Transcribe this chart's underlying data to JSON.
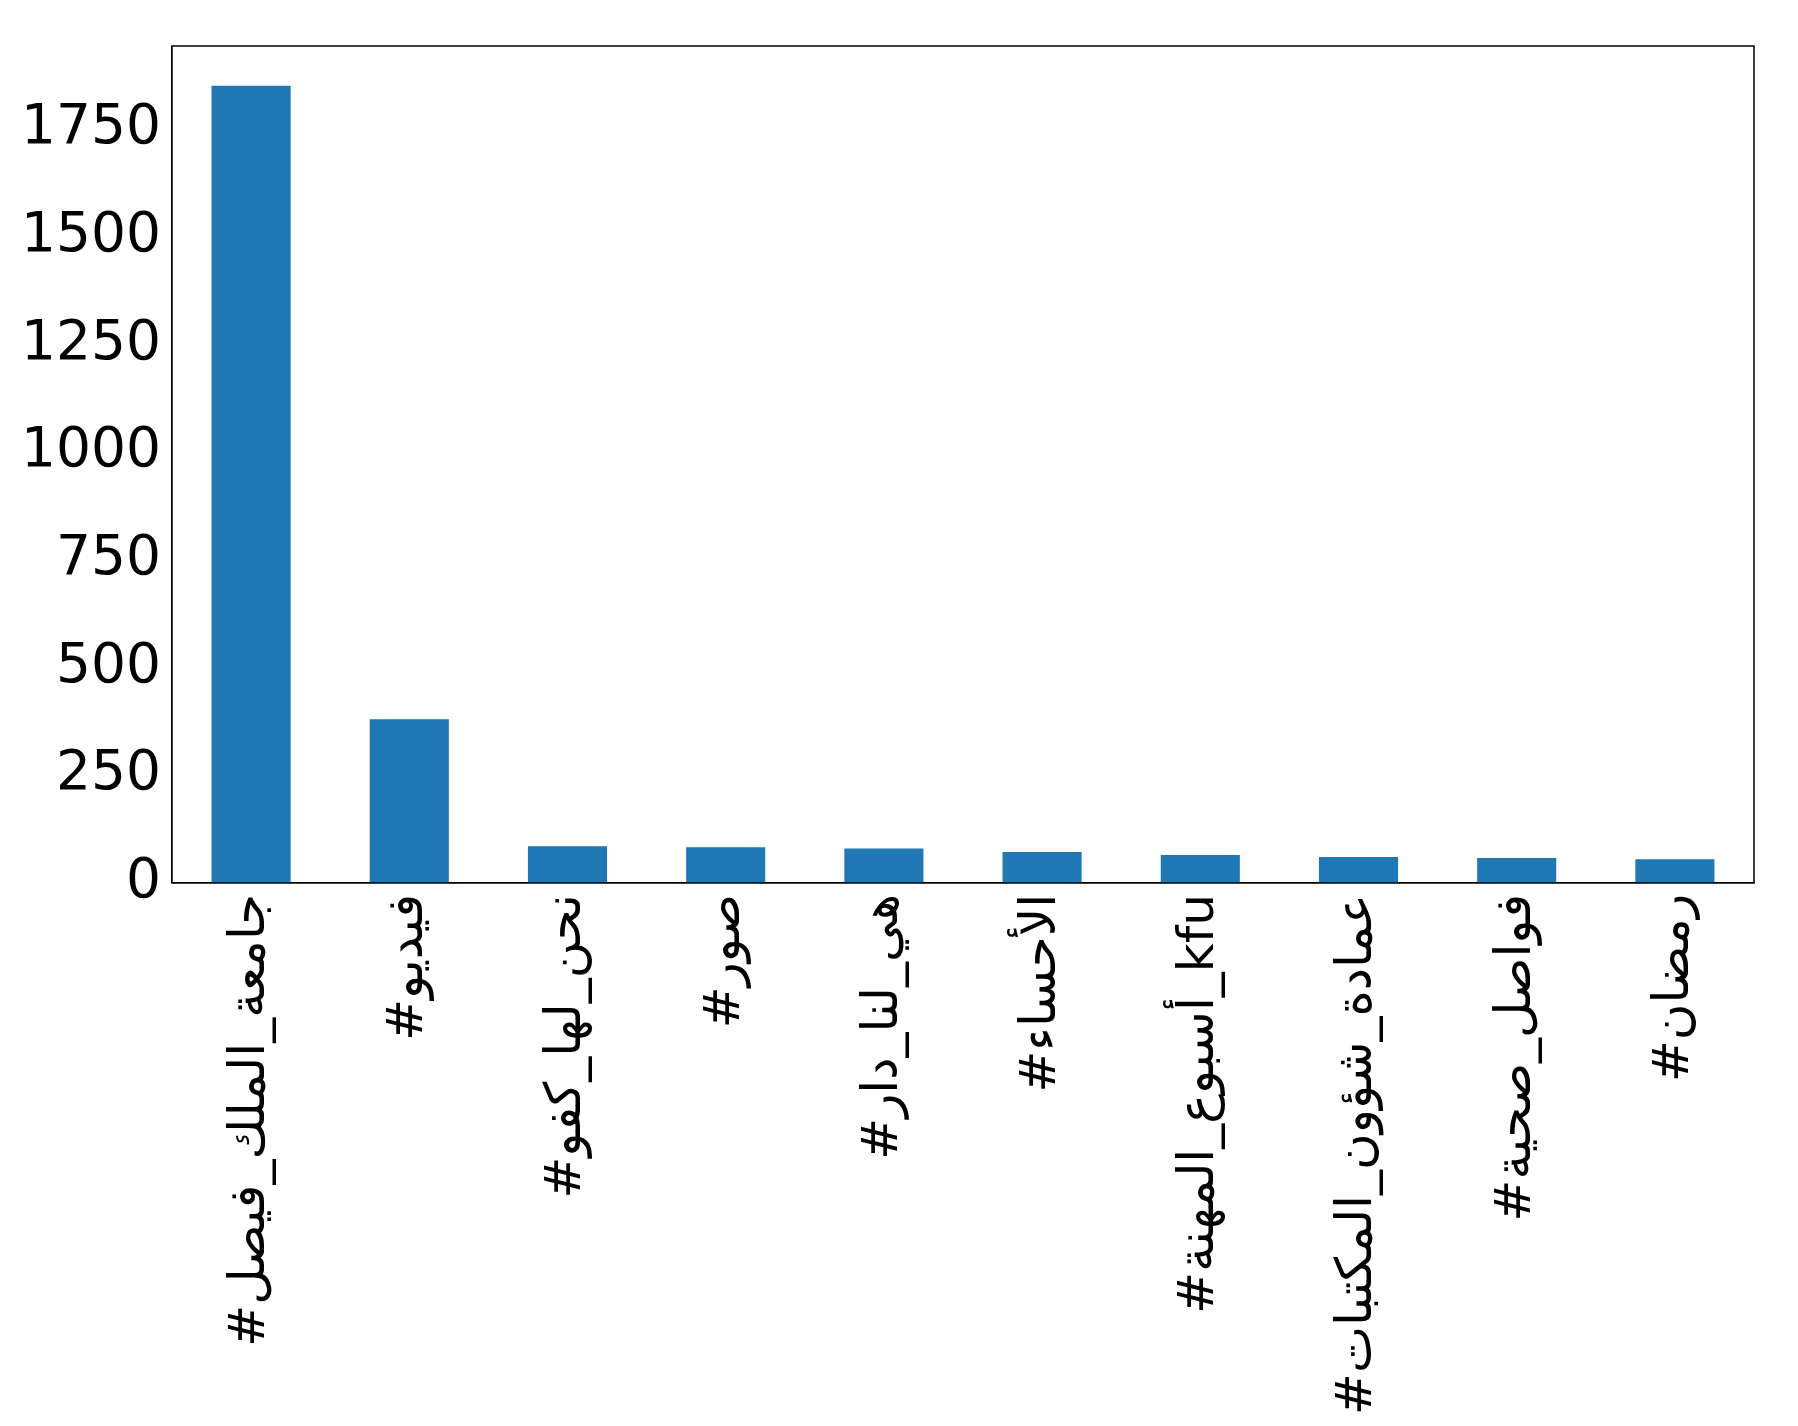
{
  "chart_data": {
    "type": "bar",
    "categories": [
      "#جامعة_الملك_فيصل",
      "#فيديو",
      "#نحن_لها_كفو",
      "#صور",
      "#هي_لنا_دار",
      "#الأحساء",
      "#أسبوع_المهنة_kfu",
      "#عمادة_شؤون_المكتبات",
      "#فواصل_صحية",
      "#رمضان"
    ],
    "values": [
      1850,
      380,
      85,
      83,
      80,
      72,
      65,
      60,
      58,
      55
    ],
    "color": "#1f77b4",
    "ylim": [
      0,
      1942
    ],
    "yticks": [
      0,
      250,
      500,
      750,
      1000,
      1250,
      1500,
      1750
    ],
    "grid": false,
    "legend": false
  }
}
